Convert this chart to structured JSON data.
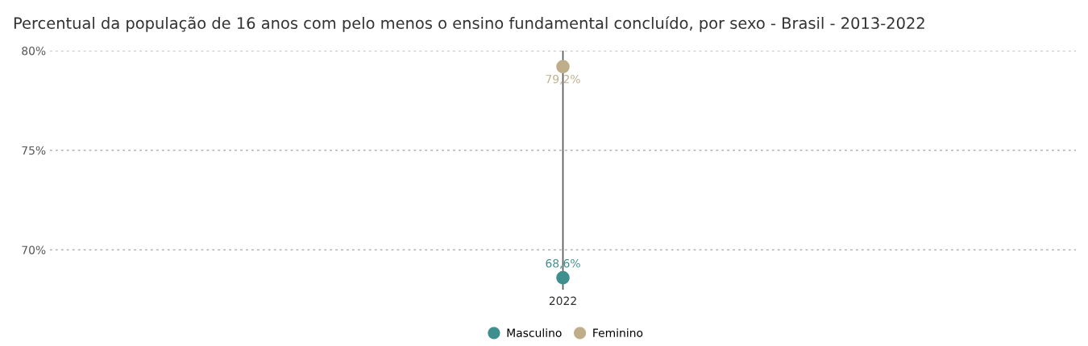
{
  "chart_data": {
    "type": "scatter",
    "title": "Percentual da população de 16 anos com pelo menos o ensino fundamental concluído, por sexo - Brasil - 2013-2022",
    "categories": [
      "2022"
    ],
    "series": [
      {
        "name": "Masculino",
        "color": "#3f8f8f",
        "values": [
          68.6
        ],
        "value_labels": [
          "68,6%"
        ]
      },
      {
        "name": "Feminino",
        "color": "#bfae8a",
        "values": [
          79.2
        ],
        "value_labels": [
          "79,2%"
        ],
        "errors": [
          [
            68,
            80
          ]
        ]
      }
    ],
    "ylim": [
      68,
      80
    ],
    "yticks": [
      {
        "value": 70,
        "label": "70%"
      },
      {
        "value": 75,
        "label": "75%"
      },
      {
        "value": 80,
        "label": "80%"
      }
    ],
    "grid": "y",
    "legend": "bottom",
    "marker": "circle"
  }
}
